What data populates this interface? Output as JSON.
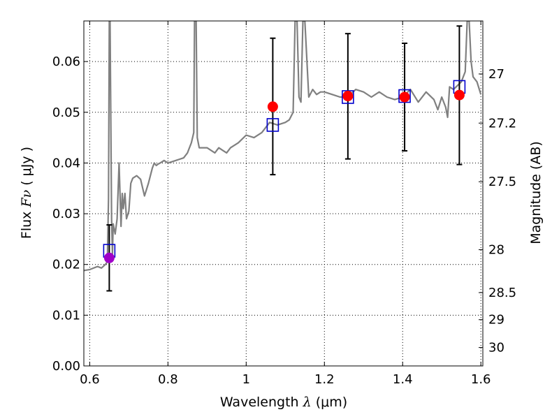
{
  "chart_data": {
    "type": "scatter",
    "xlabel": {
      "prefix": "Wavelength  ",
      "symbol": "λ",
      "suffix": " (μm)"
    },
    "ylabel": {
      "prefix": "Flux  ",
      "symbol": "Fν",
      "suffix": "  ( μJy )"
    },
    "y2label": "Magnitude (AB)",
    "xlim": [
      0.585,
      1.605
    ],
    "ylim": [
      0.0,
      0.068
    ],
    "grid": true,
    "x_ticks": [
      0.6,
      0.8,
      1.0,
      1.2,
      1.4,
      1.6
    ],
    "x_tick_labels": [
      "0.6",
      "0.8",
      "1",
      "1.2",
      "1.4",
      "1.6"
    ],
    "y_ticks": [
      0.0,
      0.01,
      0.02,
      0.03,
      0.04,
      0.05,
      0.06
    ],
    "y_tick_labels": [
      "0.00",
      "0.01",
      "0.02",
      "0.03",
      "0.04",
      "0.05",
      "0.06"
    ],
    "y2_ticks": [
      27,
      27.2,
      27.5,
      28,
      28.5,
      29,
      30
    ],
    "y2_tick_labels": [
      "27",
      "27.2",
      "27.5",
      "28",
      "28.5",
      "29",
      "30"
    ],
    "colors": {
      "spectrum": "#808080",
      "observed": "#ff0000",
      "observed_upper": "#a000c8",
      "model": "#0000cc",
      "errorbar": "#000000",
      "grid": "#000000"
    },
    "observed": [
      {
        "x": 0.65,
        "y": 0.0213,
        "err_low": 0.0148,
        "err_high": 0.0278,
        "color": "#a000c8"
      },
      {
        "x": 1.068,
        "y": 0.0511,
        "err_low": 0.0377,
        "err_high": 0.0646,
        "color": "#ff0000"
      },
      {
        "x": 1.26,
        "y": 0.0532,
        "err_low": 0.0408,
        "err_high": 0.0655,
        "color": "#ff0000"
      },
      {
        "x": 1.405,
        "y": 0.053,
        "err_low": 0.0424,
        "err_high": 0.0636,
        "color": "#ff0000"
      },
      {
        "x": 1.545,
        "y": 0.0534,
        "err_low": 0.0397,
        "err_high": 0.067,
        "color": "#ff0000"
      }
    ],
    "model": [
      {
        "x": 0.65,
        "y": 0.0227
      },
      {
        "x": 1.068,
        "y": 0.0475
      },
      {
        "x": 1.26,
        "y": 0.053
      },
      {
        "x": 1.405,
        "y": 0.0532
      },
      {
        "x": 1.545,
        "y": 0.055
      }
    ],
    "spectrum": {
      "x": [
        0.585,
        0.6,
        0.62,
        0.63,
        0.64,
        0.645,
        0.648,
        0.65,
        0.652,
        0.656,
        0.658,
        0.66,
        0.665,
        0.67,
        0.675,
        0.68,
        0.683,
        0.686,
        0.69,
        0.694,
        0.7,
        0.705,
        0.71,
        0.72,
        0.73,
        0.74,
        0.75,
        0.76,
        0.765,
        0.77,
        0.775,
        0.78,
        0.79,
        0.8,
        0.82,
        0.84,
        0.85,
        0.86,
        0.866,
        0.868,
        0.87,
        0.872,
        0.875,
        0.88,
        0.9,
        0.92,
        0.93,
        0.94,
        0.95,
        0.96,
        0.98,
        1.0,
        1.02,
        1.04,
        1.06,
        1.08,
        1.1,
        1.11,
        1.12,
        1.125,
        1.13,
        1.135,
        1.14,
        1.145,
        1.15,
        1.16,
        1.17,
        1.18,
        1.19,
        1.2,
        1.22,
        1.24,
        1.26,
        1.28,
        1.3,
        1.32,
        1.34,
        1.36,
        1.38,
        1.4,
        1.42,
        1.44,
        1.46,
        1.48,
        1.49,
        1.5,
        1.51,
        1.515,
        1.52,
        1.53,
        1.55,
        1.56,
        1.565,
        1.57,
        1.575,
        1.58,
        1.59,
        1.6
      ],
      "y": [
        0.0188,
        0.019,
        0.0196,
        0.0193,
        0.02,
        0.0205,
        0.033,
        0.068,
        0.068,
        0.029,
        0.022,
        0.028,
        0.026,
        0.029,
        0.04,
        0.0275,
        0.034,
        0.031,
        0.034,
        0.029,
        0.0305,
        0.036,
        0.037,
        0.0375,
        0.0368,
        0.0335,
        0.036,
        0.039,
        0.04,
        0.0395,
        0.0398,
        0.04,
        0.0405,
        0.04,
        0.0405,
        0.041,
        0.042,
        0.044,
        0.046,
        0.068,
        0.068,
        0.068,
        0.045,
        0.043,
        0.043,
        0.042,
        0.043,
        0.0425,
        0.042,
        0.043,
        0.044,
        0.0455,
        0.045,
        0.046,
        0.048,
        0.0475,
        0.048,
        0.0485,
        0.05,
        0.068,
        0.068,
        0.053,
        0.052,
        0.068,
        0.068,
        0.053,
        0.0545,
        0.0535,
        0.054,
        0.054,
        0.0535,
        0.053,
        0.053,
        0.0545,
        0.054,
        0.053,
        0.054,
        0.053,
        0.0525,
        0.053,
        0.0545,
        0.052,
        0.054,
        0.0525,
        0.0505,
        0.053,
        0.051,
        0.049,
        0.055,
        0.0545,
        0.056,
        0.058,
        0.068,
        0.068,
        0.06,
        0.057,
        0.056,
        0.0535
      ]
    }
  }
}
